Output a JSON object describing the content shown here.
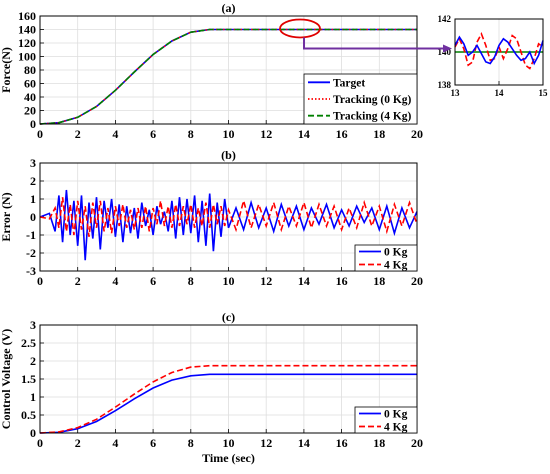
{
  "chart_data": [
    {
      "type": "line",
      "panel_label": "(a)",
      "xlabel": "",
      "ylabel": "Force(N)",
      "xlim": [
        0,
        20
      ],
      "ylim": [
        0,
        160
      ],
      "xticks": [
        "0",
        "2",
        "4",
        "6",
        "8",
        "10",
        "12",
        "14",
        "16",
        "18",
        "20"
      ],
      "yticks": [
        "0",
        "20",
        "40",
        "60",
        "80",
        "100",
        "120",
        "140",
        "160"
      ],
      "grid": true,
      "legend": "bottom-right",
      "series": [
        {
          "name": "Target",
          "color": "#0000ff",
          "style": "solid",
          "x": [
            0,
            1,
            2,
            3,
            4,
            5,
            6,
            7,
            8,
            9,
            10,
            12,
            14,
            16,
            18,
            20
          ],
          "values": [
            0,
            2,
            10,
            26,
            50,
            77,
            103,
            123,
            136,
            140,
            140,
            140,
            140,
            140,
            140,
            140
          ]
        },
        {
          "name": "Tracking (0 Kg)",
          "color": "#ff0000",
          "style": "dotted",
          "x": [
            0,
            1,
            2,
            3,
            4,
            5,
            6,
            7,
            8,
            9,
            10,
            12,
            14,
            16,
            18,
            20
          ],
          "values": [
            0,
            2,
            10,
            26,
            50,
            77,
            103,
            123,
            136,
            140,
            140,
            140,
            140,
            140,
            140,
            140
          ]
        },
        {
          "name": "Tracking (4 Kg)",
          "color": "#008000",
          "style": "dashed",
          "x": [
            0,
            1,
            2,
            3,
            4,
            5,
            6,
            7,
            8,
            9,
            10,
            12,
            14,
            16,
            18,
            20
          ],
          "values": [
            0,
            2,
            10,
            26,
            50,
            77,
            103,
            123,
            136,
            140,
            140,
            140,
            140,
            140,
            140,
            140
          ]
        }
      ]
    },
    {
      "type": "line",
      "panel_label": "",
      "xlabel": "",
      "ylabel": "",
      "xlim": [
        13,
        15
      ],
      "ylim": [
        138,
        142
      ],
      "xticks": [
        "13",
        "14",
        "15"
      ],
      "yticks": [
        "138",
        "140",
        "142"
      ],
      "grid": true,
      "series": [
        {
          "name": "",
          "color": "#008000",
          "style": "solid",
          "x": [
            13,
            15
          ],
          "values": [
            140,
            140
          ]
        },
        {
          "name": "",
          "color": "#ff0000",
          "style": "dashed",
          "x": [
            13,
            13.1,
            13.2,
            13.3,
            13.4,
            13.5,
            13.6,
            13.7,
            13.8,
            13.9,
            14.0,
            14.1,
            14.2,
            14.3,
            14.4,
            14.5,
            14.6,
            14.7,
            14.8,
            14.9,
            15.0
          ],
          "values": [
            140.3,
            140.8,
            140.2,
            139.2,
            139.4,
            140.6,
            141.1,
            140.4,
            139.5,
            139.6,
            140.3,
            139.6,
            140.2,
            141.0,
            140.8,
            140.0,
            139.2,
            139.0,
            139.6,
            140.5,
            140.3
          ]
        },
        {
          "name": "",
          "color": "#0000ff",
          "style": "solid",
          "x": [
            13,
            13.1,
            13.2,
            13.3,
            13.4,
            13.5,
            13.6,
            13.7,
            13.8,
            13.9,
            14.0,
            14.1,
            14.2,
            14.3,
            14.4,
            14.5,
            14.6,
            14.7,
            14.8,
            14.9,
            15.0
          ],
          "values": [
            140.4,
            140.9,
            140.5,
            139.8,
            140.0,
            140.4,
            139.9,
            139.4,
            139.3,
            139.7,
            140.4,
            140.8,
            140.6,
            140.2,
            139.8,
            139.5,
            139.6,
            140.0,
            139.3,
            139.8,
            140.7
          ]
        }
      ]
    },
    {
      "type": "line",
      "panel_label": "(b)",
      "xlabel": "",
      "ylabel": "Error (N)",
      "xlim": [
        0,
        20
      ],
      "ylim": [
        -3,
        3
      ],
      "xticks": [
        "0",
        "2",
        "4",
        "6",
        "8",
        "10",
        "12",
        "14",
        "16",
        "18",
        "20"
      ],
      "yticks": [
        "-3",
        "-2",
        "-1",
        "0",
        "1",
        "2",
        "3"
      ],
      "grid": true,
      "legend": "bottom-right",
      "series": [
        {
          "name": "0 Kg",
          "color": "#0000ff",
          "style": "solid",
          "x": [
            0,
            0.5,
            0.8,
            1.0,
            1.2,
            1.4,
            1.6,
            1.8,
            2.0,
            2.2,
            2.4,
            2.6,
            2.8,
            3.0,
            3.2,
            3.4,
            3.6,
            3.8,
            4.0,
            4.2,
            4.4,
            4.6,
            4.8,
            5.0,
            5.2,
            5.4,
            5.6,
            5.8,
            6.0,
            6.2,
            6.4,
            6.6,
            6.8,
            7.0,
            7.2,
            7.4,
            7.6,
            7.8,
            8.0,
            8.2,
            8.4,
            8.6,
            8.8,
            9.0,
            9.2,
            9.4,
            9.6,
            9.8,
            10.0,
            10.4,
            10.8,
            11.2,
            11.6,
            12.0,
            12.4,
            12.8,
            13.2,
            13.6,
            14.0,
            14.4,
            14.8,
            15.2,
            15.6,
            16.0,
            16.4,
            16.8,
            17.2,
            17.6,
            18.0,
            18.4,
            18.8,
            19.2,
            19.6,
            20.0
          ],
          "values": [
            0,
            0.2,
            -0.8,
            1.2,
            -1.4,
            1.5,
            -1.0,
            0.9,
            -1.6,
            1.2,
            -2.4,
            0.8,
            -1.2,
            1.1,
            -1.8,
            0.9,
            -0.6,
            1.0,
            -1.1,
            0.7,
            -1.4,
            0.6,
            -0.9,
            0.5,
            -1.2,
            0.8,
            -0.5,
            0.4,
            -1.0,
            0.6,
            -0.4,
            0.3,
            -0.8,
            0.9,
            -1.2,
            1.1,
            -1.0,
            1.0,
            -0.9,
            1.2,
            -1.4,
            0.9,
            -1.6,
            1.3,
            -1.9,
            0.8,
            -1.1,
            1.0,
            -0.6,
            0.5,
            -0.7,
            0.8,
            -0.6,
            0.5,
            -0.8,
            0.7,
            -0.5,
            0.6,
            -0.7,
            0.5,
            -0.4,
            0.7,
            -0.6,
            0.4,
            -0.5,
            0.6,
            -0.3,
            0.5,
            -0.7,
            0.6,
            -0.9,
            0.5,
            -0.6,
            0.3
          ]
        },
        {
          "name": "4 Kg",
          "color": "#ff0000",
          "style": "dashed",
          "x": [
            0,
            0.5,
            0.8,
            1.0,
            1.2,
            1.4,
            1.6,
            1.8,
            2.0,
            2.2,
            2.4,
            2.6,
            2.8,
            3.0,
            3.2,
            3.4,
            3.6,
            3.8,
            4.0,
            4.2,
            4.4,
            4.6,
            4.8,
            5.0,
            5.2,
            5.4,
            5.6,
            5.8,
            6.0,
            6.2,
            6.4,
            6.6,
            6.8,
            7.0,
            7.2,
            7.4,
            7.6,
            7.8,
            8.0,
            8.2,
            8.4,
            8.6,
            8.8,
            9.0,
            9.2,
            9.4,
            9.6,
            9.8,
            10.0,
            10.4,
            10.8,
            11.2,
            11.6,
            12.0,
            12.4,
            12.8,
            13.2,
            13.6,
            14.0,
            14.4,
            14.8,
            15.2,
            15.6,
            16.0,
            16.4,
            16.8,
            17.2,
            17.6,
            18.0,
            18.4,
            18.8,
            19.2,
            19.6,
            20.0
          ],
          "values": [
            0,
            -0.1,
            0.5,
            -0.6,
            1.1,
            -0.8,
            0.7,
            -1.0,
            0.9,
            -0.7,
            0.6,
            -1.1,
            0.8,
            -0.6,
            0.9,
            -0.8,
            0.5,
            -0.9,
            0.6,
            -0.5,
            0.7,
            -0.6,
            0.4,
            -0.7,
            0.5,
            -0.6,
            0.6,
            -0.8,
            0.5,
            -0.4,
            0.9,
            -0.5,
            0.6,
            -0.6,
            0.7,
            -0.5,
            0.6,
            -0.4,
            0.7,
            -0.6,
            0.5,
            -0.5,
            0.8,
            -0.6,
            0.7,
            -0.4,
            0.6,
            -0.5,
            0.4,
            -0.7,
            0.9,
            -0.6,
            0.7,
            -0.5,
            0.8,
            -0.7,
            0.6,
            -0.5,
            0.8,
            -0.6,
            0.7,
            -0.5,
            0.6,
            -0.7,
            0.5,
            -0.6,
            0.8,
            -0.5,
            0.6,
            -0.8,
            0.7,
            -0.5,
            0.8,
            -0.4
          ]
        }
      ]
    },
    {
      "type": "line",
      "panel_label": "(c)",
      "xlabel": "Time (sec)",
      "ylabel": "Control Voltage (V)",
      "xlim": [
        0,
        20
      ],
      "ylim": [
        0,
        3
      ],
      "xticks": [
        "0",
        "2",
        "4",
        "6",
        "8",
        "10",
        "12",
        "14",
        "16",
        "18",
        "20"
      ],
      "yticks": [
        "0",
        "0.5",
        "1",
        "1.5",
        "2",
        "2.5",
        "3"
      ],
      "grid": true,
      "legend": "bottom-right",
      "series": [
        {
          "name": "0 Kg",
          "color": "#0000ff",
          "style": "solid",
          "x": [
            0,
            1,
            2,
            3,
            4,
            5,
            6,
            7,
            8,
            9,
            10,
            12,
            14,
            16,
            18,
            20
          ],
          "values": [
            0,
            0.02,
            0.12,
            0.32,
            0.62,
            0.95,
            1.25,
            1.47,
            1.59,
            1.63,
            1.63,
            1.63,
            1.63,
            1.63,
            1.63,
            1.63
          ]
        },
        {
          "name": "4 Kg",
          "color": "#ff0000",
          "style": "dashed",
          "x": [
            0,
            1,
            2,
            3,
            4,
            5,
            6,
            7,
            8,
            9,
            10,
            12,
            14,
            16,
            18,
            20
          ],
          "values": [
            0,
            0.03,
            0.15,
            0.38,
            0.72,
            1.08,
            1.42,
            1.68,
            1.83,
            1.87,
            1.87,
            1.87,
            1.87,
            1.87,
            1.87,
            1.87
          ]
        }
      ]
    }
  ]
}
